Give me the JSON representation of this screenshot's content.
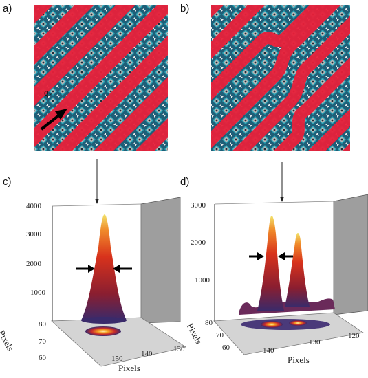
{
  "panels": {
    "a": {
      "label": "a)",
      "vector_label": "q₂"
    },
    "b": {
      "label": "b)"
    },
    "c": {
      "label": "c)",
      "z_ticks": [
        "4000",
        "3000",
        "2000",
        "1000"
      ],
      "y_ticks": [
        "80",
        "70",
        "60"
      ],
      "x_ticks": [
        "150",
        "140",
        "130"
      ],
      "y_axis_label": "Pixels",
      "x_axis_label": "Pixels"
    },
    "d": {
      "label": "d)",
      "z_ticks": [
        "3000",
        "2000",
        "1000"
      ],
      "y_ticks": [
        "80",
        "70",
        "60"
      ],
      "x_ticks": [
        "140",
        "130",
        "120"
      ],
      "y_axis_label": "Pixels",
      "x_axis_label": "Pixels"
    }
  },
  "colors": {
    "stripe": "#e8203a",
    "lattice_teal": "#2aa6b8",
    "lattice_gray": "#9a9a9a",
    "peak_top": "#f2e36a",
    "peak_mid": "#d8321c",
    "peak_base": "#3a2a6a",
    "wall": "#9e9e9e"
  }
}
